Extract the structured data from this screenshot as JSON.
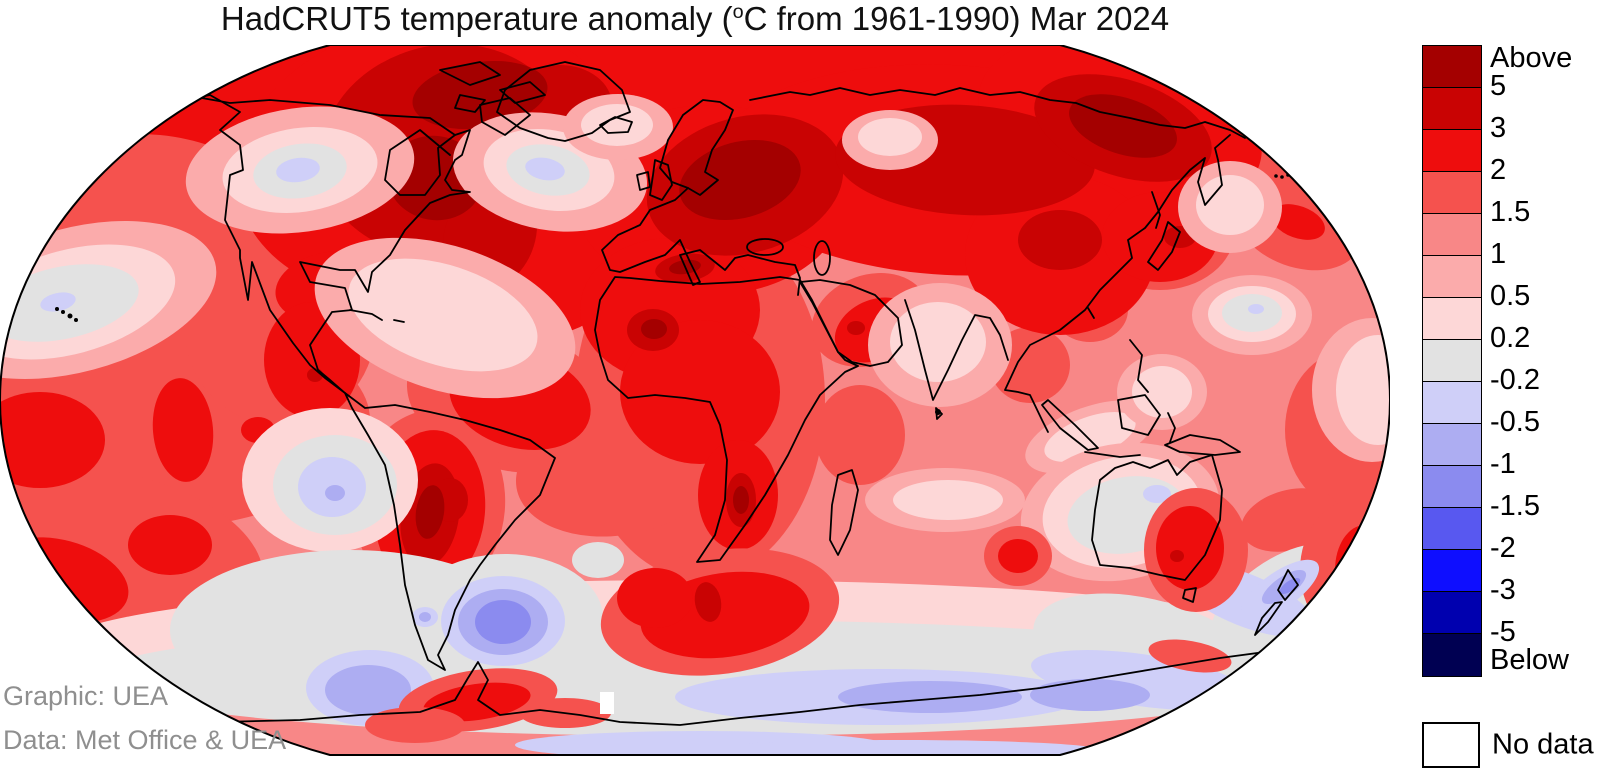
{
  "title": {
    "pre": "HadCRUT5 temperature anomaly (",
    "degree": "o",
    "post": "C from 1961-1990) Mar 2024",
    "full": "HadCRUT5 temperature anomaly (°C from 1961-1990) Mar 2024"
  },
  "colorbar": {
    "boundary_labels": [
      "Above",
      "5",
      "3",
      "2",
      "1.5",
      "1",
      "0.5",
      "0.2",
      "-0.2",
      "-0.5",
      "-1",
      "-1.5",
      "-2",
      "-3",
      "-5",
      "Below"
    ],
    "band_colors": [
      "#A40000",
      "#C90303",
      "#EE0D0D",
      "#F5524E",
      "#F88787",
      "#FBABAB",
      "#FDD7D7",
      "#E2E2E2",
      "#CFCFF8",
      "#ADADF2",
      "#8B8BEF",
      "#5858F0",
      "#0E0EFF",
      "#0000AF",
      "#000052"
    ],
    "units": "°C",
    "no_data_label": "No data",
    "no_data_color": "#FFFFFF"
  },
  "credits": {
    "graphic": "Graphic: UEA",
    "data": "Data: Met Office & UEA"
  },
  "map": {
    "projection": "Robinson",
    "period": "Mar 2024",
    "baseline": "1961-1990",
    "dataset": "HadCRUT5"
  }
}
